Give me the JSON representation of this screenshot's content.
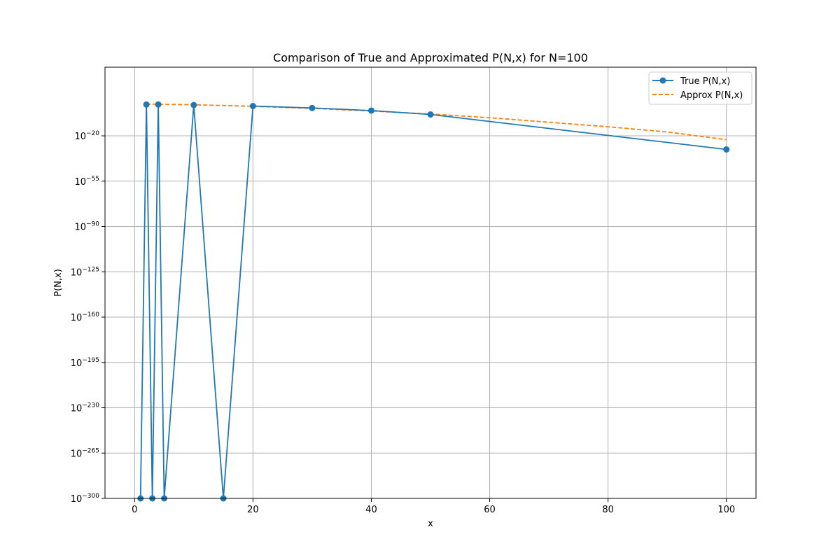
{
  "chart_data": {
    "type": "line",
    "title": "Comparison of True and Approximated P(N,x) for N=100",
    "xlabel": "x",
    "ylabel": "P(N,x)",
    "xlim": [
      -5,
      105
    ],
    "ylim_exponent": [
      -300,
      33
    ],
    "y_scale": "log",
    "grid": true,
    "legend_position": "top-right",
    "x_ticks": [
      0,
      20,
      40,
      60,
      80,
      100
    ],
    "y_tick_exponents": [
      -20,
      -55,
      -90,
      -125,
      -160,
      -195,
      -230,
      -265,
      -300
    ],
    "series": [
      {
        "name": "True P(N,x)",
        "color": "#1f77b4",
        "style": "solid-with-markers",
        "x": [
          1,
          2,
          3,
          4,
          5,
          10,
          15,
          20,
          30,
          40,
          50,
          100
        ],
        "log10_y": [
          -300,
          4.2,
          -300,
          4.2,
          -300,
          3.8,
          -300,
          3.0,
          1.5,
          -0.5,
          -3.5,
          -30.5
        ]
      },
      {
        "name": "Approx P(N,x)",
        "color": "#ff7f0e",
        "style": "dashed",
        "x": [
          2,
          10,
          20,
          30,
          40,
          50,
          60,
          70,
          80,
          90,
          100
        ],
        "log10_y": [
          4.5,
          4.0,
          2.8,
          1.2,
          -0.8,
          -3.2,
          -6.0,
          -9.5,
          -13.0,
          -17.0,
          -23.0
        ]
      }
    ]
  }
}
